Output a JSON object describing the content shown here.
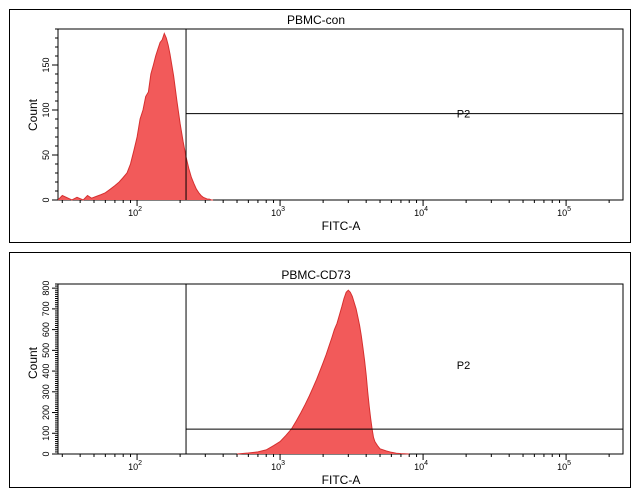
{
  "chart_data": [
    {
      "type": "area",
      "title": "PBMC-con",
      "xlabel": "FITC-A",
      "ylabel": "Count",
      "x_scale": "log",
      "xlim": [
        28,
        250000
      ],
      "ylim": [
        0,
        190
      ],
      "x_tick_labels": [
        {
          "value": 100,
          "base": "10",
          "exp": "2"
        },
        {
          "value": 1000,
          "base": "10",
          "exp": "3"
        },
        {
          "value": 10000,
          "base": "10",
          "exp": "4"
        },
        {
          "value": 100000,
          "base": "10",
          "exp": "5"
        }
      ],
      "y_tick_labels": [
        {
          "value": 0,
          "label": "0"
        },
        {
          "value": 50,
          "label": "50"
        },
        {
          "value": 100,
          "label": "100"
        },
        {
          "value": 150,
          "label": "150"
        }
      ],
      "gate": {
        "name": "P2",
        "x_start": 220,
        "y_level": 96
      },
      "fill_color": "#f25a5a",
      "x": [
        28,
        30,
        35,
        38,
        42,
        45,
        48,
        52,
        56,
        60,
        65,
        70,
        75,
        80,
        85,
        90,
        95,
        100,
        105,
        110,
        115,
        120,
        125,
        130,
        135,
        140,
        145,
        150,
        155,
        160,
        165,
        170,
        180,
        190,
        200,
        210,
        220,
        230,
        240,
        250,
        260,
        270,
        280,
        290,
        300,
        310,
        320,
        330,
        340
      ],
      "y": [
        0,
        5,
        0,
        3,
        0,
        5,
        2,
        4,
        6,
        8,
        12,
        16,
        20,
        25,
        30,
        40,
        55,
        70,
        90,
        100,
        115,
        120,
        140,
        150,
        160,
        168,
        175,
        178,
        185,
        180,
        172,
        162,
        138,
        110,
        85,
        65,
        48,
        35,
        25,
        18,
        12,
        8,
        5,
        3,
        2,
        1,
        1,
        0,
        0
      ]
    },
    {
      "type": "area",
      "title": "PBMC-CD73",
      "xlabel": "FITC-A",
      "ylabel": "Count",
      "x_scale": "log",
      "xlim": [
        28,
        250000
      ],
      "ylim": [
        0,
        820
      ],
      "x_tick_labels": [
        {
          "value": 100,
          "base": "10",
          "exp": "2"
        },
        {
          "value": 1000,
          "base": "10",
          "exp": "3"
        },
        {
          "value": 10000,
          "base": "10",
          "exp": "4"
        },
        {
          "value": 100000,
          "base": "10",
          "exp": "5"
        }
      ],
      "y_tick_labels": [
        {
          "value": 0,
          "label": "0"
        },
        {
          "value": 100,
          "label": "100"
        },
        {
          "value": 200,
          "label": "200"
        },
        {
          "value": 300,
          "label": "300"
        },
        {
          "value": 400,
          "label": "400"
        },
        {
          "value": 500,
          "label": "500"
        },
        {
          "value": 600,
          "label": "600"
        },
        {
          "value": 700,
          "label": "700"
        },
        {
          "value": 800,
          "label": "800"
        }
      ],
      "gate": {
        "name": "P2",
        "x_start": 220,
        "y_level": 120
      },
      "fill_color": "#f25a5a",
      "x": [
        500,
        600,
        700,
        800,
        900,
        1000,
        1100,
        1200,
        1300,
        1400,
        1500,
        1600,
        1700,
        1800,
        1900,
        2000,
        2100,
        2200,
        2300,
        2400,
        2500,
        2600,
        2700,
        2800,
        2900,
        3000,
        3100,
        3200,
        3300,
        3400,
        3500,
        3600,
        3700,
        3800,
        3900,
        4000,
        4100,
        4200,
        4300,
        4400,
        4500,
        4600,
        4800,
        5000,
        5500,
        6000,
        6500,
        7000,
        8000
      ],
      "y": [
        0,
        5,
        10,
        20,
        40,
        60,
        90,
        120,
        160,
        200,
        240,
        280,
        320,
        360,
        400,
        440,
        480,
        520,
        560,
        600,
        630,
        670,
        710,
        750,
        780,
        790,
        780,
        760,
        730,
        700,
        660,
        620,
        570,
        510,
        450,
        380,
        300,
        230,
        170,
        120,
        80,
        60,
        40,
        25,
        15,
        8,
        4,
        2,
        0
      ]
    }
  ]
}
